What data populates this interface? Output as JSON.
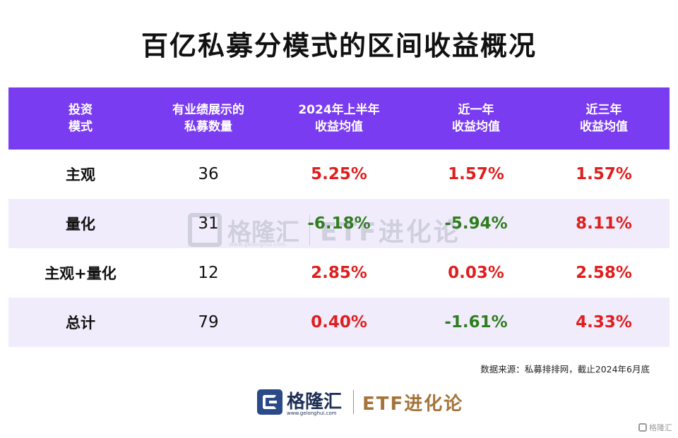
{
  "title": "百亿私募分模式的区间收益概况",
  "table": {
    "headers": [
      [
        "投资",
        "模式"
      ],
      [
        "有业绩展示的",
        "私募数量"
      ],
      [
        "2024年上半年",
        "收益均值"
      ],
      [
        "近一年",
        "收益均值"
      ],
      [
        "近三年",
        "收益均值"
      ]
    ],
    "rows": [
      {
        "mode": "主观",
        "count": "36",
        "h1_2024": "5.25%",
        "one_year": "1.57%",
        "three_year": "1.57%"
      },
      {
        "mode": "量化",
        "count": "31",
        "h1_2024": "-6.18%",
        "one_year": "-5.94%",
        "three_year": "8.11%"
      },
      {
        "mode": "主观+量化",
        "count": "12",
        "h1_2024": "2.85%",
        "one_year": "0.03%",
        "three_year": "2.58%"
      },
      {
        "mode": "总计",
        "count": "79",
        "h1_2024": "0.40%",
        "one_year": "-1.61%",
        "three_year": "4.33%"
      }
    ]
  },
  "colors": {
    "header_bg": "#7a3cf0",
    "alt_row_bg": "#f1ecfb",
    "positive": "#e01e1e",
    "negative": "#2f7d1e"
  },
  "watermark": {
    "brand_cn": "格隆汇",
    "brand_url": "www.gelonghui.com",
    "etf_text": "ETF进化论"
  },
  "source_note": "数据来源：私募排排网，截止2024年6月底",
  "footer": {
    "brand_cn": "格隆汇",
    "brand_url": "www.gelonghui.com",
    "etf_text": "ETF进化论"
  },
  "corner_mark": "格隆汇"
}
